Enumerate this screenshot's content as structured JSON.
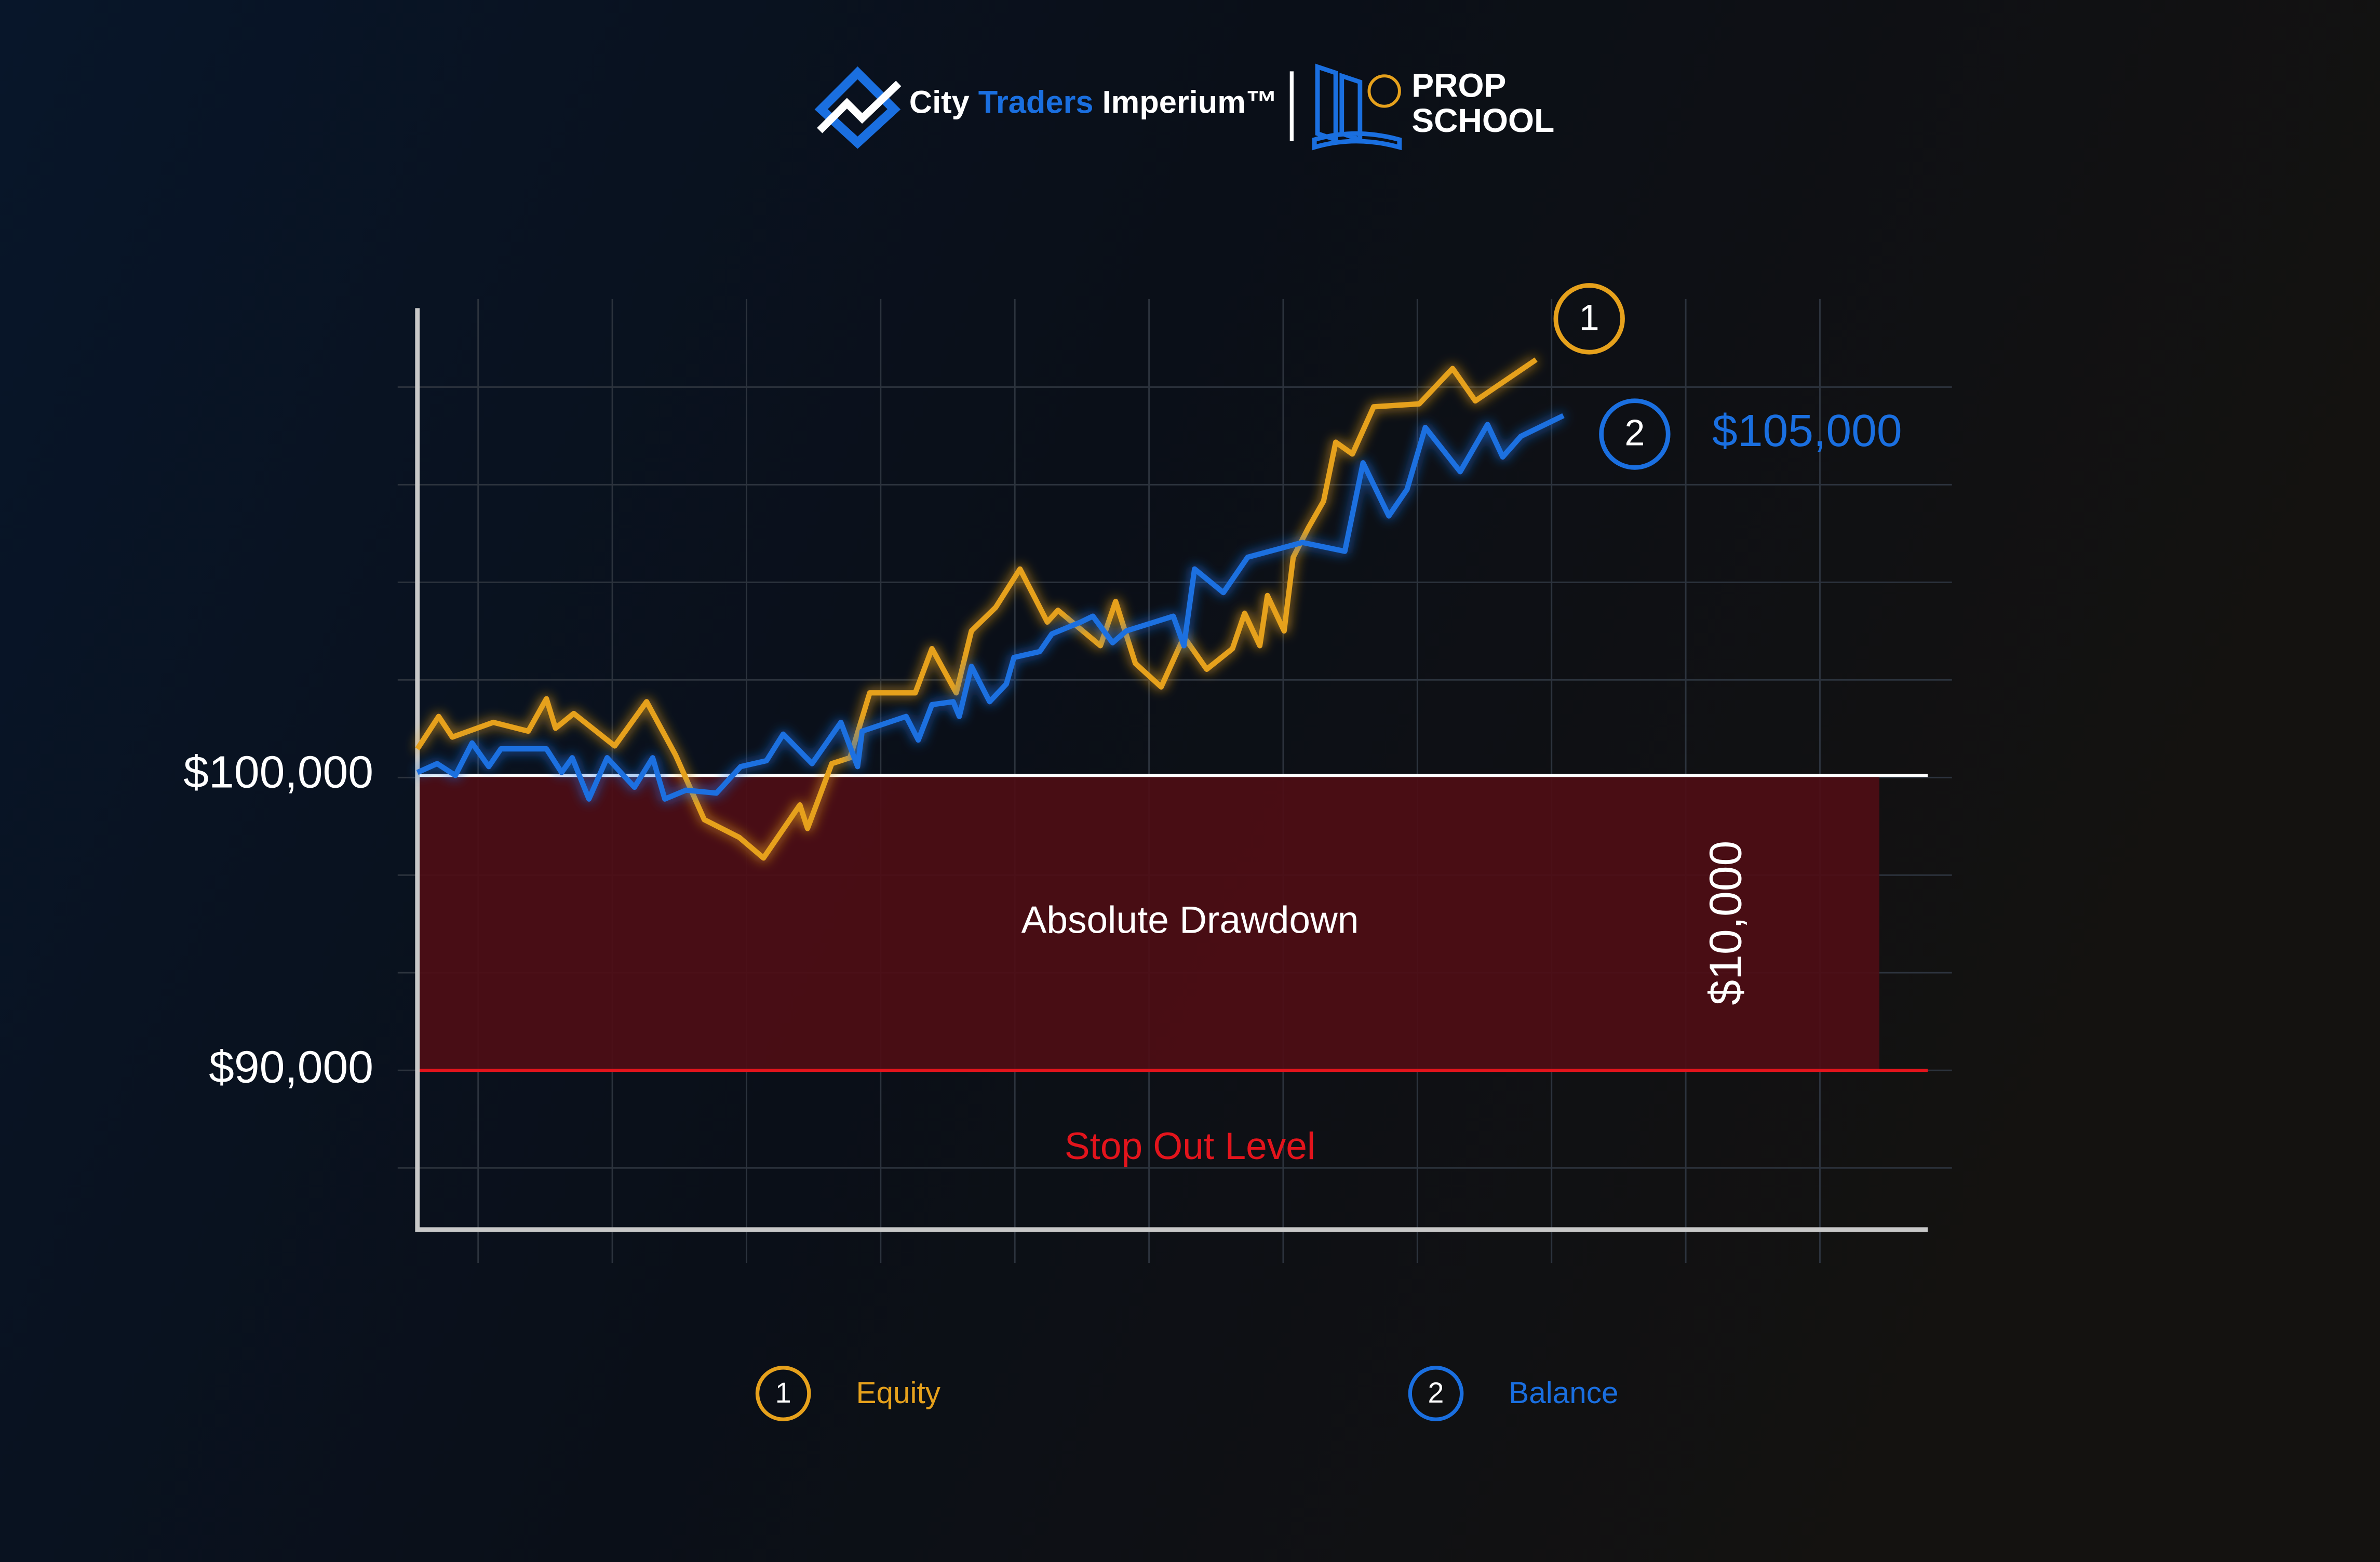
{
  "header": {
    "brand": [
      "City",
      "Traders",
      "Imperium™"
    ],
    "school": [
      "PROP",
      "SCHOOL"
    ]
  },
  "chart_data": {
    "type": "line",
    "xlim": [
      0,
      995
    ],
    "ylim": [
      84600,
      116000
    ],
    "yticks": [
      {
        "value": 100000,
        "label": "$100,000",
        "color": "#ffffff"
      },
      {
        "value": 90000,
        "label": "$90,000",
        "color": "#e3141c"
      }
    ],
    "grid": true,
    "bands": [
      {
        "from": 90000,
        "to": 100000,
        "label": "Absolute Drawdown",
        "size_label": "$10,000",
        "color": "#4e0d15"
      }
    ],
    "annotations": {
      "stop_out": "Stop Out Level",
      "balance_value": "$105,000"
    },
    "series": [
      {
        "name": "Equity",
        "marker": "1",
        "color": "#e6a11c",
        "x": [
          0,
          14,
          23,
          50,
          73,
          85,
          91,
          103,
          130,
          151,
          170,
          189,
          212,
          228,
          252,
          257,
          273,
          285,
          298,
          328,
          339,
          355,
          365,
          381,
          397,
          415,
          422,
          450,
          460,
          473,
          490,
          505,
          520,
          537,
          545,
          555,
          560,
          571,
          577,
          587,
          597,
          605,
          616,
          630,
          660,
          682,
          697,
          737
        ],
        "values": [
          100900,
          102000,
          101300,
          101800,
          101500,
          102600,
          101600,
          102100,
          101000,
          102500,
          100700,
          98500,
          97900,
          97200,
          99000,
          98200,
          100400,
          100600,
          102800,
          102800,
          104300,
          102800,
          104900,
          105700,
          107000,
          105200,
          105600,
          104400,
          105900,
          103800,
          103000,
          104700,
          103600,
          104300,
          105500,
          104400,
          106100,
          104900,
          107400,
          108400,
          109300,
          111300,
          110900,
          112500,
          112600,
          113800,
          112700,
          114100
        ]
      },
      {
        "name": "Balance",
        "marker": "2",
        "color": "#1a6fe0",
        "x": [
          0,
          13,
          25,
          36,
          47,
          55,
          85,
          95,
          102,
          113,
          125,
          143,
          155,
          163,
          177,
          197,
          213,
          230,
          241,
          260,
          279,
          290,
          293,
          322,
          330,
          339,
          353,
          357,
          365,
          377,
          388,
          393,
          410,
          418,
          437,
          445,
          458,
          467,
          498,
          505,
          512,
          531,
          547,
          583,
          611,
          623,
          640,
          652,
          664,
          687,
          705,
          715,
          727,
          755
        ],
        "values": [
          100100,
          100400,
          100000,
          101100,
          100300,
          100900,
          100900,
          100100,
          100600,
          99200,
          100600,
          99600,
          100600,
          99200,
          99500,
          99400,
          100300,
          100500,
          101400,
          100400,
          101800,
          100300,
          101500,
          102000,
          101200,
          102400,
          102500,
          102000,
          103700,
          102500,
          103100,
          104000,
          104200,
          104800,
          105200,
          105400,
          104500,
          104900,
          105400,
          104400,
          107000,
          106200,
          107400,
          107900,
          107600,
          110600,
          108800,
          109700,
          111800,
          110300,
          111900,
          110800,
          111500,
          112200
        ]
      }
    ]
  }
}
